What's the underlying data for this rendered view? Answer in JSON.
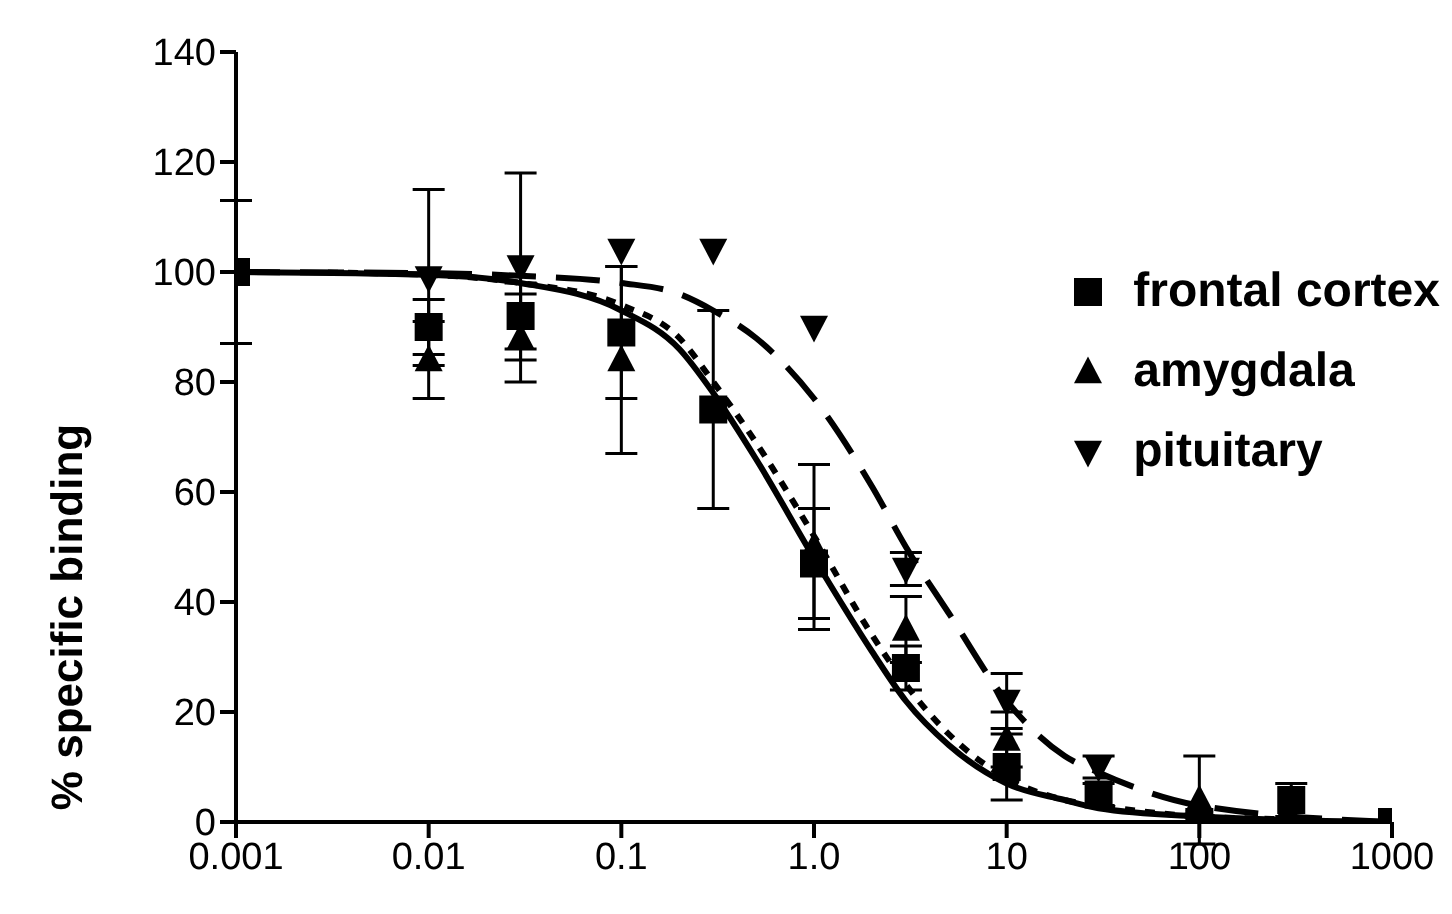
{
  "chart_data": {
    "type": "scatter",
    "ylabel": "% specific binding",
    "x": [
      0.001,
      0.01,
      0.03,
      0.1,
      0.3,
      1,
      3,
      10,
      30,
      100,
      300,
      1000
    ],
    "series": [
      {
        "name": "frontal cortex",
        "color": "#000000",
        "marker": "square",
        "values": [
          100,
          90,
          92,
          89,
          75,
          47,
          28,
          10,
          5,
          0,
          4,
          0
        ],
        "errors": [
          13,
          5,
          6,
          12,
          18,
          10,
          4,
          6,
          2,
          null,
          3,
          null
        ]
      },
      {
        "name": "amygdala",
        "color": "#000000",
        "marker": "triangle",
        "values": [
          null,
          84,
          88,
          84,
          null,
          50,
          35,
          15,
          null,
          4,
          null,
          null
        ],
        "errors": [
          null,
          7,
          8,
          17,
          null,
          15,
          6,
          5,
          null,
          8,
          null,
          null
        ]
      },
      {
        "name": "pituitary",
        "color": "#000000",
        "marker": "triangle-down",
        "values": [
          null,
          99,
          101,
          104,
          104,
          90,
          46,
          22,
          10,
          null,
          null,
          null
        ],
        "errors": [
          null,
          16,
          17,
          null,
          null,
          null,
          3,
          5,
          2,
          null,
          null,
          null
        ]
      },
      {
        "type": "line",
        "color": "#000000",
        "line_style": "solid",
        "marker": "none",
        "x": [
          0.001,
          0.01,
          0.03,
          0.1,
          0.2,
          0.3,
          0.5,
          1,
          2,
          3,
          5,
          10,
          20,
          30,
          100,
          1000
        ],
        "values": [
          100,
          99.5,
          98,
          93,
          86,
          78,
          66,
          48,
          31,
          22,
          14,
          7,
          4,
          2.5,
          1,
          0
        ]
      },
      {
        "type": "line",
        "color": "#000000",
        "line_style": "dotted",
        "marker": "none",
        "x": [
          0.003,
          0.01,
          0.03,
          0.1,
          0.2,
          0.3,
          0.5,
          1,
          2,
          3,
          5,
          10,
          20,
          30,
          100,
          300
        ],
        "values": [
          99.9,
          99.5,
          98,
          94,
          88,
          80,
          69,
          52,
          34,
          25,
          16,
          8,
          4,
          3,
          1,
          0.5
        ]
      },
      {
        "type": "line",
        "color": "#000000",
        "line_style": "dashed",
        "marker": "none",
        "x": [
          0.001,
          0.01,
          0.03,
          0.1,
          0.2,
          0.3,
          0.5,
          1,
          2,
          3,
          5,
          10,
          20,
          30,
          100,
          1000
        ],
        "values": [
          100,
          99.8,
          99.3,
          98,
          96,
          93,
          88,
          77,
          61,
          50,
          38,
          22,
          12,
          9,
          3,
          0
        ]
      }
    ],
    "log": "x",
    "xlim": [
      0.001,
      1000
    ],
    "xticks": [
      0.001,
      0.01,
      0.1,
      {
        "value": 1,
        "label": "1.0"
      },
      10,
      100,
      1000
    ],
    "ylim": [
      0,
      140
    ],
    "yticks": [
      0,
      20,
      40,
      60,
      80,
      100,
      120,
      140
    ],
    "legend": "top right"
  }
}
